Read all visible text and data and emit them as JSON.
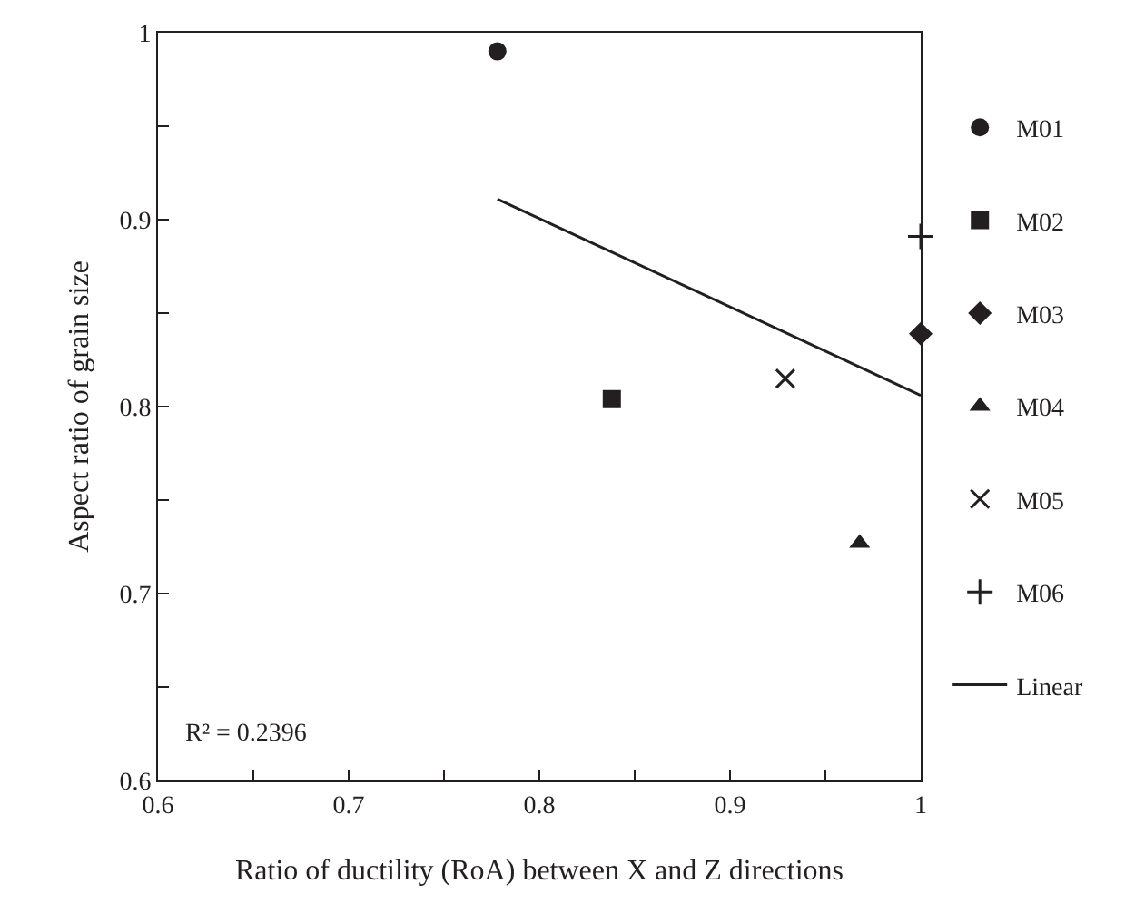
{
  "chart_data": {
    "type": "scatter",
    "xlabel": "Ratio of ductility (RoA) between X and Z directions",
    "ylabel": "Aspect ratio of grain size",
    "series": [
      {
        "name": "M01",
        "color": "#231f20",
        "marker": "circle",
        "x": [
          0.778
        ],
        "values": [
          0.99
        ]
      },
      {
        "name": "M02",
        "color": "#231f20",
        "marker": "square",
        "x": [
          0.838
        ],
        "values": [
          0.804
        ]
      },
      {
        "name": "M03",
        "color": "#231f20",
        "marker": "diamond",
        "x": [
          1.0
        ],
        "values": [
          0.839
        ]
      },
      {
        "name": "M04",
        "color": "#231f20",
        "marker": "triangle",
        "x": [
          0.968
        ],
        "values": [
          0.727
        ]
      },
      {
        "name": "M05",
        "color": "#231f20",
        "marker": "cross",
        "x": [
          0.929
        ],
        "values": [
          0.815
        ]
      },
      {
        "name": "M06",
        "color": "#231f20",
        "marker": "plus",
        "x": [
          1.0
        ],
        "values": [
          0.891
        ]
      },
      {
        "name": "Linear",
        "type": "line",
        "color": "#231f20",
        "marker": "none",
        "line_style": "solid",
        "x": [
          0.778,
          1.0
        ],
        "values": [
          0.911,
          0.806
        ]
      }
    ],
    "annotations": [
      "R² = 0.2396"
    ],
    "xlim": [
      0.6,
      1
    ],
    "ylim": [
      0.6,
      1
    ],
    "xticks": [
      0.6,
      {
        "value": 0.65,
        "label": null
      },
      0.7,
      {
        "value": 0.75,
        "label": null
      },
      0.8,
      {
        "value": 0.85,
        "label": null
      },
      0.9,
      {
        "value": 0.95,
        "label": null
      },
      {
        "value": 1,
        "label": "1"
      }
    ],
    "yticks": [
      0.6,
      {
        "value": 0.65,
        "label": null
      },
      0.7,
      {
        "value": 0.75,
        "label": null
      },
      0.8,
      {
        "value": 0.85,
        "label": null
      },
      0.9,
      {
        "value": 0.95,
        "label": null
      },
      {
        "value": 1,
        "label": "1"
      }
    ],
    "legend": "right"
  }
}
